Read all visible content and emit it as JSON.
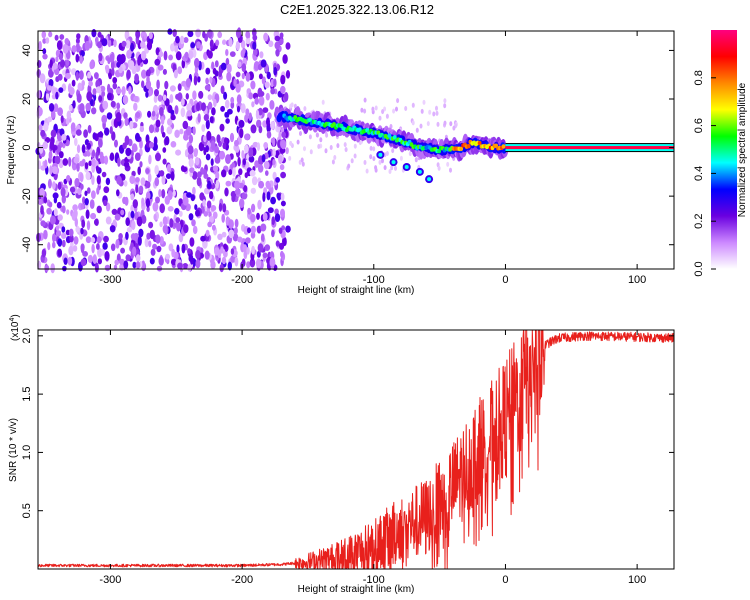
{
  "title": "C2E1.2025.322.13.06.R12",
  "chart_data": [
    {
      "type": "heatmap",
      "title": "C2E1.2025.322.13.06.R12",
      "xlabel": "Height of straight line (km)",
      "ylabel": "Frequency (Hz)",
      "xlim": [
        -355,
        128
      ],
      "ylim": [
        -50,
        48
      ],
      "xticks": [
        -300,
        -200,
        -100,
        0,
        100
      ],
      "yticks": [
        -40,
        -20,
        0,
        20,
        40
      ],
      "colorbar": {
        "label": "Normalized spectral amplitude",
        "range": [
          0,
          1
        ],
        "ticks": [
          0.0,
          0.2,
          0.4,
          0.6,
          0.8
        ],
        "tick_labels": [
          "0.0",
          "0.2",
          "0.4",
          "0.6",
          "0.8"
        ],
        "colors": [
          "#ffffff",
          "#cc88ff",
          "#6a00e0",
          "#0000ff",
          "#00ffff",
          "#00ff00",
          "#ffff00",
          "#ff8800",
          "#ff0000",
          "#ff007f"
        ]
      },
      "noise_region_x": [
        -355,
        -165
      ],
      "signal_track": [
        {
          "x": -172,
          "y": 13
        },
        {
          "x": -160,
          "y": 12
        },
        {
          "x": -140,
          "y": 10
        },
        {
          "x": -120,
          "y": 8
        },
        {
          "x": -100,
          "y": 6
        },
        {
          "x": -80,
          "y": 3
        },
        {
          "x": -65,
          "y": 0
        },
        {
          "x": -50,
          "y": -1
        },
        {
          "x": -35,
          "y": -0.5
        },
        {
          "x": -25,
          "y": 2
        },
        {
          "x": -10,
          "y": 0
        },
        {
          "x": 0,
          "y": 0
        },
        {
          "x": 128,
          "y": 0
        }
      ],
      "steady_line_x": [
        0,
        128
      ],
      "steady_line_y": 0
    },
    {
      "type": "line",
      "xlabel": "Height of straight line (km)",
      "ylabel": "SNR (10 * v/v)",
      "yscale_label": "(x10",
      "yscale_exp": "4",
      "xlim": [
        -355,
        128
      ],
      "ylim": [
        0,
        2.05
      ],
      "xticks": [
        -300,
        -200,
        -100,
        0,
        100
      ],
      "yticks": [
        0.5,
        1.0,
        1.5,
        2.0
      ],
      "ytick_labels": [
        "0.5",
        "1.0",
        "1.5",
        "2.0"
      ],
      "color": "#e8201c",
      "series": [
        {
          "name": "SNR",
          "envelope": [
            {
              "x": -355,
              "y": 0.03
            },
            {
              "x": -200,
              "y": 0.03
            },
            {
              "x": -170,
              "y": 0.04
            },
            {
              "x": -150,
              "y": 0.06
            },
            {
              "x": -125,
              "y": 0.1
            },
            {
              "x": -100,
              "y": 0.2
            },
            {
              "x": -80,
              "y": 0.35
            },
            {
              "x": -60,
              "y": 0.45
            },
            {
              "x": -40,
              "y": 0.7
            },
            {
              "x": -25,
              "y": 0.95
            },
            {
              "x": -10,
              "y": 1.15
            },
            {
              "x": 0,
              "y": 1.3
            },
            {
              "x": 10,
              "y": 1.5
            },
            {
              "x": 20,
              "y": 1.75
            },
            {
              "x": 30,
              "y": 1.92
            },
            {
              "x": 40,
              "y": 1.98
            },
            {
              "x": 60,
              "y": 2.0
            },
            {
              "x": 100,
              "y": 1.99
            },
            {
              "x": 128,
              "y": 1.98
            }
          ]
        }
      ]
    }
  ]
}
